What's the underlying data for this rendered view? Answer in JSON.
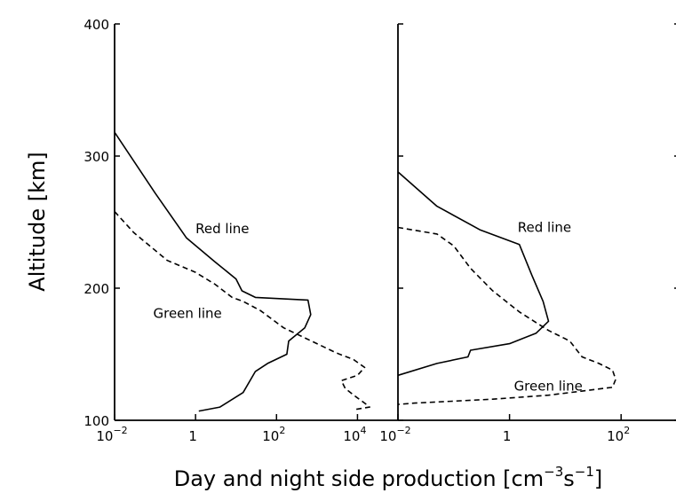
{
  "figure": {
    "ylabel": "Altitude [km]",
    "xlabel": "Day and night side production [cm",
    "xlabel_exp1": "−3",
    "xlabel_mid": "s",
    "xlabel_exp2": "−1",
    "xlabel_end": "]"
  },
  "chart_data": [
    {
      "type": "line",
      "panel": "left",
      "x_scale": "log",
      "xlim": [
        0.01,
        100000
      ],
      "ylim": [
        100,
        400
      ],
      "grid": false,
      "ylabel": "Altitude [km]",
      "y_ticks": [
        {
          "value": 100,
          "label": "100"
        },
        {
          "value": 200,
          "label": "200"
        },
        {
          "value": 300,
          "label": "300"
        },
        {
          "value": 400,
          "label": "400"
        }
      ],
      "x_ticks": [
        {
          "value": 0.01,
          "base": "10",
          "exp": "−2"
        },
        {
          "value": 1,
          "base": "1",
          "exp": ""
        },
        {
          "value": 100,
          "base": "10",
          "exp": "2"
        },
        {
          "value": 10000,
          "base": "10",
          "exp": "4"
        }
      ],
      "series": [
        {
          "name": "Red line",
          "style": "solid",
          "points": [
            [
              0.01,
              318
            ],
            [
              0.1,
              272
            ],
            [
              0.6,
              238
            ],
            [
              3,
              220
            ],
            [
              10,
              207
            ],
            [
              14,
              198
            ],
            [
              30,
              193
            ],
            [
              600,
              191
            ],
            [
              700,
              180
            ],
            [
              500,
              170
            ],
            [
              200,
              160
            ],
            [
              180,
              150
            ],
            [
              60,
              143
            ],
            [
              30,
              137
            ],
            [
              15,
              121
            ],
            [
              4,
              110
            ],
            [
              1.2,
              107
            ]
          ]
        },
        {
          "name": "Green line",
          "style": "dashed",
          "points": [
            [
              0.01,
              258
            ],
            [
              0.03,
              242
            ],
            [
              0.2,
              221
            ],
            [
              1,
              212
            ],
            [
              3,
              203
            ],
            [
              8,
              193
            ],
            [
              15,
              190
            ],
            [
              40,
              183
            ],
            [
              150,
              170
            ],
            [
              1000,
              158
            ],
            [
              3000,
              151
            ],
            [
              8000,
              146
            ],
            [
              15000,
              140
            ],
            [
              10000,
              134
            ],
            [
              4000,
              130
            ],
            [
              5000,
              124
            ],
            [
              9000,
              118
            ],
            [
              15000,
              113
            ],
            [
              20000,
              110
            ],
            [
              8000,
              108
            ]
          ]
        }
      ],
      "annotations": [
        {
          "text": "Red line",
          "x": 1.0,
          "y": 245
        },
        {
          "text": "Green line",
          "x": 0.09,
          "y": 181
        }
      ]
    },
    {
      "type": "line",
      "panel": "right",
      "x_scale": "log",
      "xlim": [
        0.01,
        1000
      ],
      "ylim": [
        100,
        400
      ],
      "grid": false,
      "x_ticks": [
        {
          "value": 0.01,
          "base": "10",
          "exp": "−2"
        },
        {
          "value": 1,
          "base": "1",
          "exp": ""
        },
        {
          "value": 100,
          "base": "10",
          "exp": "2"
        }
      ],
      "series": [
        {
          "name": "Red line",
          "style": "solid",
          "points": [
            [
              0.01,
              288
            ],
            [
              0.05,
              262
            ],
            [
              0.3,
              244
            ],
            [
              1.5,
              233
            ],
            [
              2.5,
              210
            ],
            [
              4,
              190
            ],
            [
              5,
              175
            ],
            [
              3,
              166
            ],
            [
              1,
              158
            ],
            [
              0.2,
              153
            ],
            [
              0.18,
              148
            ],
            [
              0.05,
              143
            ],
            [
              0.01,
              134
            ]
          ]
        },
        {
          "name": "Green line",
          "style": "dashed",
          "points": [
            [
              0.01,
              246
            ],
            [
              0.05,
              241
            ],
            [
              0.1,
              232
            ],
            [
              0.2,
              215
            ],
            [
              0.5,
              198
            ],
            [
              1.5,
              182
            ],
            [
              5,
              168
            ],
            [
              12,
              160
            ],
            [
              20,
              148
            ],
            [
              40,
              143
            ],
            [
              70,
              138
            ],
            [
              80,
              131
            ],
            [
              70,
              125
            ],
            [
              5,
              119
            ],
            [
              0.5,
              116
            ],
            [
              0.02,
              113
            ],
            [
              0.01,
              112
            ]
          ]
        }
      ],
      "annotations": [
        {
          "text": "Red line",
          "x": 1.4,
          "y": 246
        },
        {
          "text": "Green line",
          "x": 1.2,
          "y": 126
        }
      ]
    }
  ]
}
